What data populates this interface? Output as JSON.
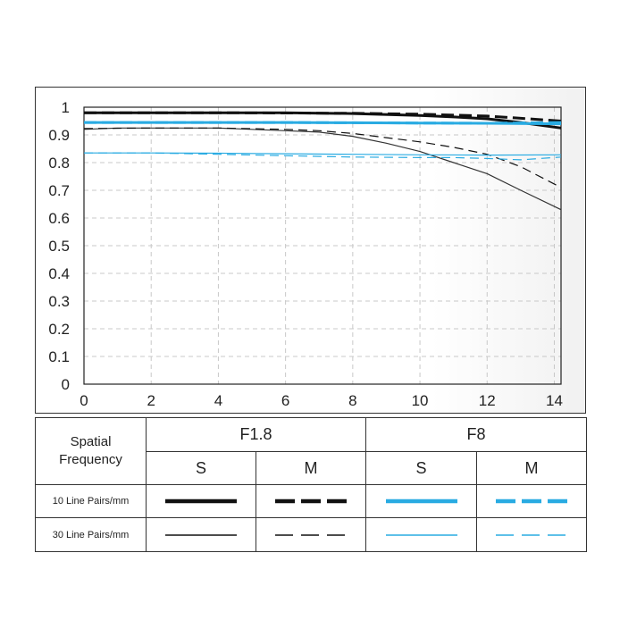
{
  "chart_data": {
    "type": "line",
    "xlim": [
      0,
      14.2
    ],
    "ylim": [
      0,
      1
    ],
    "x_ticks": [
      "0",
      "2",
      "4",
      "6",
      "8",
      "10",
      "12",
      "14"
    ],
    "y_ticks": [
      "0",
      "0.1",
      "0.2",
      "0.3",
      "0.4",
      "0.5",
      "0.6",
      "0.7",
      "0.8",
      "0.9",
      "1"
    ],
    "grid": true,
    "series": [
      {
        "aperture": "F1.8",
        "direction": "S",
        "frequency": "10 Line Pairs/mm",
        "color": "#111111",
        "dash": "solid",
        "weight": "thick",
        "x": [
          0,
          2,
          4,
          6,
          8,
          10,
          11,
          12,
          13,
          14.2
        ],
        "y": [
          0.98,
          0.98,
          0.98,
          0.98,
          0.977,
          0.97,
          0.965,
          0.958,
          0.945,
          0.925
        ]
      },
      {
        "aperture": "F1.8",
        "direction": "M",
        "frequency": "10 Line Pairs/mm",
        "color": "#111111",
        "dash": "dashed",
        "weight": "thick",
        "x": [
          0,
          2,
          4,
          6,
          8,
          10,
          12,
          13,
          14.2
        ],
        "y": [
          0.98,
          0.98,
          0.98,
          0.979,
          0.978,
          0.975,
          0.968,
          0.96,
          0.95
        ]
      },
      {
        "aperture": "F8",
        "direction": "S",
        "frequency": "10 Line Pairs/mm",
        "color": "#29abe2",
        "dash": "solid",
        "weight": "thick",
        "x": [
          0,
          2,
          4,
          6,
          8,
          10,
          12,
          14.2
        ],
        "y": [
          0.945,
          0.945,
          0.945,
          0.945,
          0.944,
          0.943,
          0.942,
          0.94
        ]
      },
      {
        "aperture": "F8",
        "direction": "M",
        "frequency": "10 Line Pairs/mm",
        "color": "#29abe2",
        "dash": "dashed",
        "weight": "thick",
        "x": [
          0,
          2,
          4,
          6,
          8,
          10,
          12,
          14.2
        ],
        "y": [
          0.945,
          0.945,
          0.945,
          0.945,
          0.944,
          0.943,
          0.942,
          0.945
        ]
      },
      {
        "aperture": "F1.8",
        "direction": "S",
        "frequency": "30 Line Pairs/mm",
        "color": "#333333",
        "dash": "solid",
        "weight": "thin",
        "x": [
          0,
          1,
          2,
          3,
          4,
          5,
          6,
          7,
          8,
          9,
          10,
          11,
          12,
          13,
          14.2
        ],
        "y": [
          0.92,
          0.925,
          0.925,
          0.925,
          0.925,
          0.92,
          0.915,
          0.91,
          0.895,
          0.87,
          0.84,
          0.8,
          0.76,
          0.7,
          0.63
        ]
      },
      {
        "aperture": "F1.8",
        "direction": "M",
        "frequency": "30 Line Pairs/mm",
        "color": "#111111",
        "dash": "dashed",
        "weight": "thin",
        "x": [
          0,
          2,
          4,
          6,
          7,
          8,
          9,
          10,
          11,
          12,
          13,
          14.2
        ],
        "y": [
          0.923,
          0.925,
          0.925,
          0.92,
          0.915,
          0.905,
          0.89,
          0.875,
          0.855,
          0.83,
          0.785,
          0.71
        ]
      },
      {
        "aperture": "F8",
        "direction": "S",
        "frequency": "30 Line Pairs/mm",
        "color": "#29abe2",
        "dash": "solid",
        "weight": "thin",
        "x": [
          0,
          2,
          4,
          6,
          8,
          10,
          12,
          14.2
        ],
        "y": [
          0.835,
          0.835,
          0.834,
          0.832,
          0.83,
          0.828,
          0.827,
          0.828
        ]
      },
      {
        "aperture": "F8",
        "direction": "M",
        "frequency": "30 Line Pairs/mm",
        "color": "#29abe2",
        "dash": "dashed",
        "weight": "thin",
        "x": [
          0,
          2,
          4,
          6,
          8,
          10,
          11,
          12,
          13,
          14.2
        ],
        "y": [
          0.835,
          0.835,
          0.83,
          0.825,
          0.82,
          0.818,
          0.818,
          0.815,
          0.81,
          0.82
        ]
      }
    ]
  },
  "legend": {
    "spatial_line1": "Spatial",
    "spatial_line2": "Frequency",
    "f18": "F1.8",
    "f8": "F8",
    "s": "S",
    "m": "M",
    "row10": "10 Line Pairs/mm",
    "row30": "30 Line Pairs/mm",
    "black": "#111111",
    "blue": "#29abe2"
  }
}
